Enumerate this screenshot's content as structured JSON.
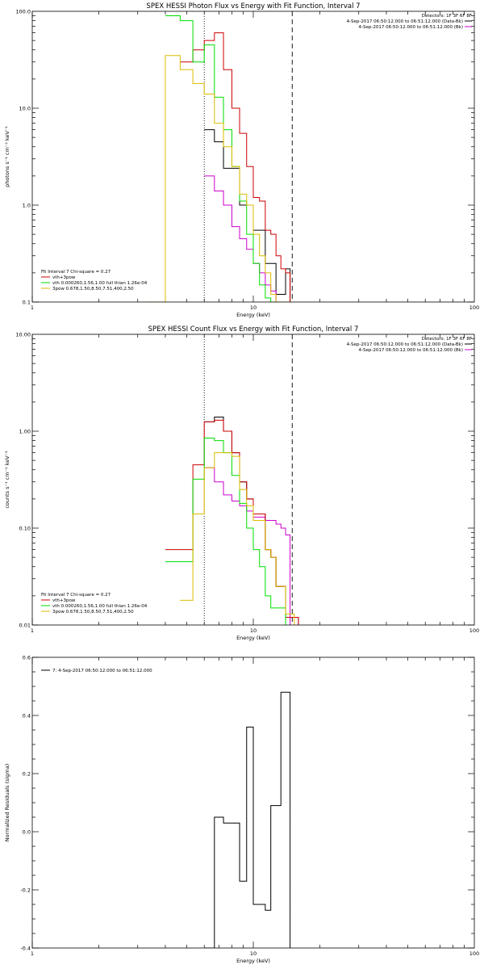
{
  "chart_data": [
    {
      "type": "line",
      "title": "SPEX HESSI Photon Flux vs Energy with Fit Function, Interval 7",
      "xlabel": "Energy (keV)",
      "ylabel": "photons s⁻¹ cm⁻² keV⁻¹",
      "xlog": true,
      "ylog": true,
      "xlim": [
        1,
        100
      ],
      "ylim": [
        0.1,
        100
      ],
      "x_ticks": [
        {
          "v": 1,
          "label": "1"
        },
        {
          "v": 10,
          "label": "10"
        },
        {
          "v": 100,
          "label": "100"
        }
      ],
      "y_ticks": [
        {
          "v": 0.1,
          "label": "0.1"
        },
        {
          "v": 1,
          "label": "1.0"
        },
        {
          "v": 10,
          "label": "10.0"
        },
        {
          "v": 100,
          "label": "100.0"
        }
      ],
      "vlines": [
        {
          "x": 6.0,
          "style": "dotted",
          "color": "#000000"
        },
        {
          "x": 15.0,
          "style": "dashed",
          "color": "#000000"
        }
      ],
      "info_lines": [
        {
          "text": "Detectors: 1F 3F 6F 8F",
          "color": "#000000",
          "marker": false
        },
        {
          "text": "4-Sep-2017 06:50:12.000 to 06:51:12.000 (Data-Bk)",
          "color": "#000000",
          "marker": true
        },
        {
          "text": "4-Sep-2017 06:50:12.000 to 06:51:12.000 (Bk)",
          "color": "#cc00cc",
          "marker": true
        }
      ],
      "legend_title": "Fit Interval 7   Chi-square = 0.27",
      "legend_position": "bottom-left",
      "legend": [
        {
          "text": "vth+3pow",
          "color": "#cc0000"
        },
        {
          "text": "vth 0.000260,1.56,1.00  full thian 1.26e-04",
          "color": "#00dd00"
        },
        {
          "text": "3pow 0.678,1.50,8.50,7.51,400,2.50",
          "color": "#ddbb00"
        }
      ],
      "series": [
        {
          "color": "#000000",
          "edges": [
            6.0,
            6.67,
            7.33,
            8.0,
            8.67,
            9.33,
            10.0,
            10.67,
            11.33,
            12.0,
            12.67,
            13.33,
            14.0,
            14.67
          ],
          "values": [
            6.0,
            4.5,
            2.4,
            2.4,
            1.0,
            1.0,
            0.55,
            0.55,
            0.25,
            0.25,
            0.12,
            0.12,
            0.22
          ]
        },
        {
          "color": "#cc00cc",
          "edges": [
            6.0,
            6.67,
            7.33,
            8.0,
            8.67,
            9.33,
            10.0,
            10.67,
            11.33,
            12.0,
            12.67,
            13.33,
            14.0,
            14.67
          ],
          "values": [
            2.0,
            1.4,
            1.0,
            0.6,
            0.45,
            0.35,
            0.25,
            0.2,
            0.15,
            0.13,
            0.1,
            0.09,
            0.08
          ]
        },
        {
          "color": "#cc0000",
          "edges": [
            4.67,
            5.33,
            6.0,
            6.67,
            7.33,
            8.0,
            8.67,
            9.33,
            10.0,
            10.67,
            11.33,
            12.0,
            12.67,
            13.33,
            14.0,
            14.67
          ],
          "values": [
            30.0,
            40.0,
            50.0,
            60.0,
            25.0,
            10.0,
            5.5,
            2.5,
            1.2,
            1.1,
            0.55,
            0.5,
            0.3,
            0.22,
            0.2
          ]
        },
        {
          "color": "#00dd00",
          "edges": [
            4.0,
            4.67,
            5.33,
            6.0,
            6.67,
            7.33,
            8.0,
            8.67,
            9.33,
            10.0,
            10.67,
            11.33,
            12.0,
            12.67,
            13.33
          ],
          "values": [
            90.0,
            80.0,
            30.0,
            45.0,
            13.0,
            6.0,
            2.5,
            1.1,
            0.5,
            0.25,
            0.15,
            0.11,
            0.1,
            0.1
          ]
        },
        {
          "color": "#ddbb00",
          "edges": [
            3.33,
            4.0,
            4.67,
            5.33,
            6.0,
            6.67,
            7.33,
            8.0,
            8.67,
            9.33,
            10.0,
            10.67,
            11.33,
            12.0,
            12.67,
            13.33,
            14.0,
            14.67
          ],
          "values": [
            0.1,
            35.0,
            25.0,
            18.0,
            14.0,
            7.0,
            4.0,
            2.5,
            1.3,
            1.0,
            0.5,
            0.3,
            0.2,
            0.12,
            0.1,
            0.1,
            0.1
          ]
        }
      ]
    },
    {
      "type": "line",
      "title": "SPEX HESSI Count Flux vs Energy with Fit Function, Interval 7",
      "xlabel": "Energy (keV)",
      "ylabel": "counts s⁻¹ cm⁻² keV⁻¹",
      "xlog": true,
      "ylog": true,
      "xlim": [
        1,
        100
      ],
      "ylim": [
        0.01,
        10
      ],
      "x_ticks": [
        {
          "v": 1,
          "label": "1"
        },
        {
          "v": 10,
          "label": "10"
        },
        {
          "v": 100,
          "label": "100"
        }
      ],
      "y_ticks": [
        {
          "v": 0.01,
          "label": "0.01"
        },
        {
          "v": 0.1,
          "label": "0.10"
        },
        {
          "v": 1,
          "label": "1.00"
        },
        {
          "v": 10,
          "label": "10.00"
        }
      ],
      "vlines": [
        {
          "x": 6.0,
          "style": "dotted",
          "color": "#000000"
        },
        {
          "x": 15.0,
          "style": "dashed",
          "color": "#000000"
        }
      ],
      "info_lines": [
        {
          "text": "Detectors: 1F 3F 6F 8F",
          "color": "#000000",
          "marker": false
        },
        {
          "text": "4-Sep-2017 06:50:12.000 to 06:51:12.000 (Data-Bk)",
          "color": "#000000",
          "marker": true
        },
        {
          "text": "4-Sep-2017 06:50:12.000 to 06:51:12.000 (Bk)",
          "color": "#cc00cc",
          "marker": true
        }
      ],
      "legend_title": "Fit Interval 7   Chi-square = 0.27",
      "legend_position": "bottom-left",
      "legend": [
        {
          "text": "vth+3pow",
          "color": "#cc0000"
        },
        {
          "text": "vth 0.000260,1.56,1.00  full thian 1.26e-04",
          "color": "#00dd00"
        },
        {
          "text": "3pow 0.678,1.50,8.50,7.51,400,2.50",
          "color": "#ddbb00"
        }
      ],
      "series": [
        {
          "color": "#000000",
          "edges": [
            6.0,
            6.67,
            7.33,
            8.0,
            8.67,
            9.33,
            10.0,
            10.67,
            11.33,
            12.0,
            12.67,
            13.33,
            14.0,
            14.67,
            15.33,
            16.0
          ],
          "values": [
            1.25,
            1.4,
            1.0,
            0.6,
            0.3,
            0.2,
            0.14,
            0.14,
            0.06,
            0.05,
            0.025,
            0.025,
            0.012,
            0.012,
            0.012
          ]
        },
        {
          "color": "#cc00cc",
          "edges": [
            6.0,
            6.67,
            7.33,
            8.0,
            8.67,
            9.33,
            10.0,
            10.67,
            11.33,
            12.0,
            12.67,
            13.33,
            14.0,
            14.67
          ],
          "values": [
            0.42,
            0.3,
            0.22,
            0.19,
            0.17,
            0.15,
            0.13,
            0.13,
            0.12,
            0.12,
            0.11,
            0.1,
            0.085
          ]
        },
        {
          "color": "#cc0000",
          "edges": [
            4.0,
            4.67,
            5.33,
            6.0,
            6.67,
            7.33,
            8.0,
            8.67,
            9.33,
            10.0,
            10.67,
            11.33,
            12.0,
            12.67,
            13.33,
            14.0,
            14.67,
            15.33,
            16.0
          ],
          "values": [
            0.06,
            0.06,
            0.45,
            1.25,
            1.3,
            1.0,
            0.6,
            0.3,
            0.2,
            0.14,
            0.14,
            0.06,
            0.05,
            0.025,
            0.025,
            0.012,
            0.012,
            0.012
          ]
        },
        {
          "color": "#00dd00",
          "edges": [
            4.0,
            4.67,
            5.33,
            6.0,
            6.67,
            7.33,
            8.0,
            8.67,
            9.33,
            10.0,
            10.67,
            11.33,
            12.0,
            12.67,
            13.33,
            14.0
          ],
          "values": [
            0.045,
            0.045,
            0.32,
            0.85,
            0.8,
            0.6,
            0.35,
            0.18,
            0.1,
            0.06,
            0.04,
            0.02,
            0.015,
            0.015,
            0.015
          ]
        },
        {
          "color": "#ddbb00",
          "edges": [
            4.67,
            5.33,
            6.0,
            6.67,
            7.33,
            8.0,
            8.67,
            9.33,
            10.0,
            10.67,
            11.33,
            12.0,
            12.67,
            13.33,
            14.0,
            14.67,
            15.33
          ],
          "values": [
            0.018,
            0.14,
            0.42,
            0.6,
            0.6,
            0.55,
            0.25,
            0.17,
            0.12,
            0.12,
            0.06,
            0.05,
            0.025,
            0.025,
            0.013,
            0.013
          ]
        }
      ]
    },
    {
      "type": "line",
      "title": "",
      "xlabel": "Energy (keV)",
      "ylabel": "Normalized Residuals (sigma)",
      "xlog": true,
      "ylog": false,
      "xlim": [
        1,
        100
      ],
      "ylim": [
        -0.4,
        0.6
      ],
      "x_ticks": [
        {
          "v": 1,
          "label": "1"
        },
        {
          "v": 10,
          "label": "10"
        },
        {
          "v": 100,
          "label": "100"
        }
      ],
      "y_ticks": [
        {
          "v": -0.4,
          "label": "-0.4"
        },
        {
          "v": -0.2,
          "label": "-0.2"
        },
        {
          "v": 0.0,
          "label": "0.0"
        },
        {
          "v": 0.2,
          "label": "0.2"
        },
        {
          "v": 0.4,
          "label": "0.4"
        },
        {
          "v": 0.6,
          "label": "0.6"
        }
      ],
      "vlines": [],
      "info_lines": [],
      "legend_title": "",
      "legend_position": "top-left",
      "legend": [
        {
          "text": "7:  4-Sep-2017 06:50:12.000 to 06:51:12.000",
          "color": "#000000"
        }
      ],
      "series": [
        {
          "color": "#000000",
          "edges": [
            6.0,
            6.67,
            7.33,
            8.0,
            8.67,
            9.33,
            10.0,
            10.67,
            11.33,
            12.0,
            12.67,
            13.33,
            14.0,
            14.67
          ],
          "values": [
            -0.4,
            0.05,
            0.03,
            0.03,
            -0.17,
            0.36,
            -0.25,
            -0.25,
            -0.27,
            0.09,
            0.09,
            0.48,
            0.48
          ],
          "close_at_bottom": true
        }
      ]
    }
  ]
}
